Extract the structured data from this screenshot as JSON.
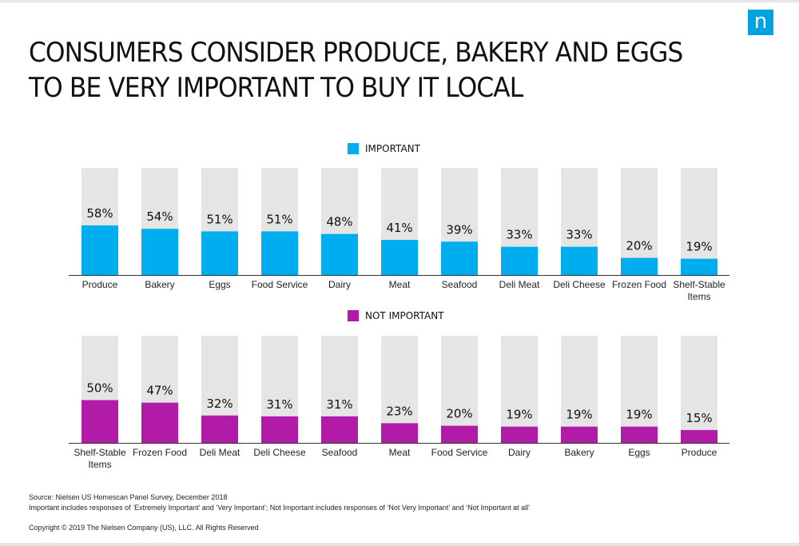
{
  "brand": {
    "logo_glyph": "n",
    "accent": "#00a3e0"
  },
  "title": {
    "line1": "CONSUMERS CONSIDER PRODUCE, BAKERY AND EGGS",
    "line2": "TO BE VERY IMPORTANT TO BUY IT LOCAL"
  },
  "chart_data": [
    {
      "type": "bar",
      "legend": "IMPORTANT",
      "color": "#00aeef",
      "track_color": "#e5e5e5",
      "ylim": [
        0,
        100
      ],
      "categories": [
        "Produce",
        "Bakery",
        "Eggs",
        "Food Service",
        "Dairy",
        "Meat",
        "Seafood",
        "Deli Meat",
        "Deli Cheese",
        "Frozen Food",
        "Shelf-Stable Items"
      ],
      "values": [
        58,
        54,
        51,
        51,
        48,
        41,
        39,
        33,
        33,
        20,
        19
      ],
      "value_labels": [
        "58%",
        "54%",
        "51%",
        "51%",
        "48%",
        "41%",
        "39%",
        "33%",
        "33%",
        "20%",
        "19%"
      ]
    },
    {
      "type": "bar",
      "legend": "NOT IMPORTANT",
      "color": "#b21aa8",
      "track_color": "#e5e5e5",
      "ylim": [
        0,
        100
      ],
      "categories": [
        "Shelf-Stable Items",
        "Frozen Food",
        "Deli Meat",
        "Deli Cheese",
        "Seafood",
        "Meat",
        "Food Service",
        "Dairy",
        "Bakery",
        "Eggs",
        "Produce"
      ],
      "values": [
        50,
        47,
        32,
        31,
        31,
        23,
        20,
        19,
        19,
        19,
        15
      ],
      "value_labels": [
        "50%",
        "47%",
        "32%",
        "31%",
        "31%",
        "23%",
        "20%",
        "19%",
        "19%",
        "19%",
        "15%"
      ]
    }
  ],
  "footnotes": {
    "source": "Source: Nielsen US Homescan Panel Survey, December 2018",
    "definitions": "Important includes responses of ‘Extremely Important’ and ‘Very Important’; Not Important includes responses of ‘Not Very Important’ and ‘Not Important at all’",
    "copyright": "Copyright © 2019 The Nielsen Company (US), LLC. All Rights Reserved"
  }
}
